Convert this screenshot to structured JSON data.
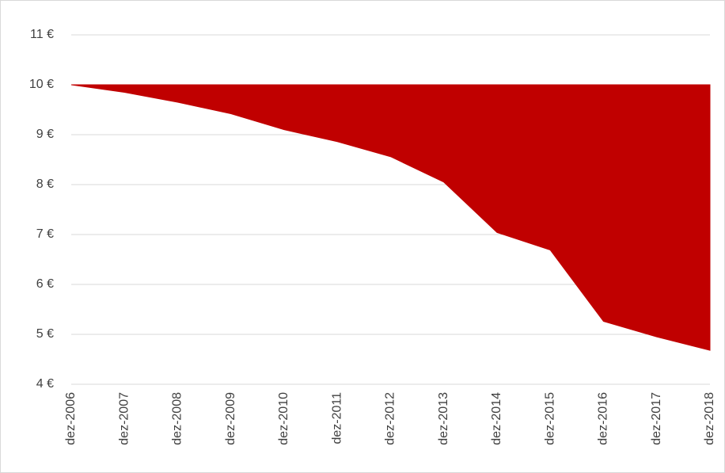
{
  "chart_data": {
    "type": "area",
    "categories": [
      "dez-2006",
      "dez-2007",
      "dez-2008",
      "dez-2009",
      "dez-2010",
      "dez-2011",
      "dez-2012",
      "dez-2013",
      "dez-2014",
      "dez-2015",
      "dez-2016",
      "dez-2017",
      "dez-2018"
    ],
    "values": [
      10.0,
      9.85,
      9.65,
      9.42,
      9.1,
      8.86,
      8.56,
      8.05,
      7.04,
      6.69,
      5.26,
      4.95,
      4.68
    ],
    "fill_to": 10,
    "color": "#c00000",
    "ylim": [
      4,
      11
    ],
    "yticks": [
      {
        "value": 4,
        "label": "4 €"
      },
      {
        "value": 5,
        "label": "5 €"
      },
      {
        "value": 6,
        "label": "6 €"
      },
      {
        "value": 7,
        "label": "7 €"
      },
      {
        "value": 8,
        "label": "8 €"
      },
      {
        "value": 9,
        "label": "9 €"
      },
      {
        "value": 10,
        "label": "10 €"
      },
      {
        "value": 11,
        "label": "11 €"
      }
    ],
    "grid": true
  }
}
